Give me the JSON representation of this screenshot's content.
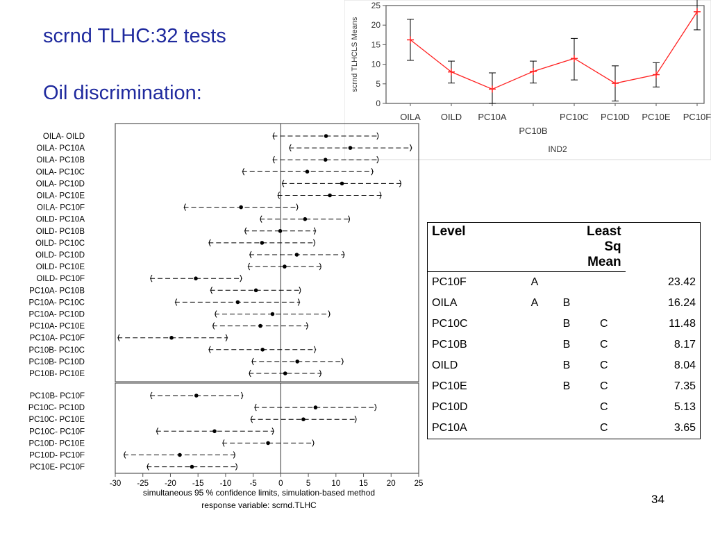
{
  "slide": {
    "title": "scrnd TLHC:32 tests",
    "subtitle": "Oil discrimination:",
    "page_number": "34"
  },
  "colors": {
    "title": "#1f2a9e",
    "means_line": "#ff2020",
    "means_marker": "#ff2020",
    "interval": "#000000"
  },
  "chart_data": [
    {
      "type": "line",
      "title": "",
      "xlabel": "IND2",
      "ylabel": "scrnd TLHCLS Means",
      "ylim": [
        0,
        25
      ],
      "yticks": [
        0,
        5,
        10,
        15,
        20,
        25
      ],
      "grid": false,
      "categories": [
        "OILA",
        "OILD",
        "PC10A",
        "PC10B",
        "PC10C",
        "PC10D",
        "PC10E",
        "PC10F"
      ],
      "category_label_rows": [
        0,
        0,
        0,
        1,
        0,
        0,
        0,
        0
      ],
      "series": [
        {
          "values": [
            16.24,
            8.04,
            3.65,
            8.17,
            11.48,
            5.13,
            7.35,
            23.42
          ],
          "lower": [
            11,
            5.2,
            0,
            5.2,
            6,
            0.6,
            4.2,
            18.8
          ],
          "upper": [
            21.5,
            10.8,
            7.8,
            10.8,
            16.6,
            9.6,
            10.4,
            26.5
          ]
        }
      ]
    },
    {
      "type": "interval",
      "xlim": [
        -30,
        25
      ],
      "xticks": [
        -30,
        -25,
        -20,
        -15,
        -10,
        -5,
        0,
        5,
        10,
        15,
        20,
        25
      ],
      "notes": [
        "simultaneous  95 % confidence limits, simulation-based method",
        "response variable: scrnd.TLHC"
      ],
      "panels": [
        {
          "rows": [
            {
              "label": "OILA- OILD",
              "estimate": 8.2,
              "lower": -1.5,
              "upper": 17.8
            },
            {
              "label": "OILA- PC10A",
              "estimate": 12.6,
              "lower": 1.5,
              "upper": 23.8
            },
            {
              "label": "OILA- PC10B",
              "estimate": 8.1,
              "lower": -1.5,
              "upper": 17.8
            },
            {
              "label": "OILA- PC10C",
              "estimate": 4.8,
              "lower": -7.0,
              "upper": 16.8
            },
            {
              "label": "OILA- PC10D",
              "estimate": 11.1,
              "lower": 0.2,
              "upper": 21.9
            },
            {
              "label": "OILA- PC10E",
              "estimate": 8.9,
              "lower": -0.6,
              "upper": 18.3
            },
            {
              "label": "OILA- PC10F",
              "estimate": -7.2,
              "lower": -17.6,
              "upper": 3.2
            },
            {
              "label": "OILD- PC10A",
              "estimate": 4.4,
              "lower": -3.8,
              "upper": 12.6
            },
            {
              "label": "OILD- PC10B",
              "estimate": -0.1,
              "lower": -6.6,
              "upper": 6.4
            },
            {
              "label": "OILD- PC10C",
              "estimate": -3.4,
              "lower": -13.1,
              "upper": 6.3
            },
            {
              "label": "OILD- PC10D",
              "estimate": 2.9,
              "lower": -5.7,
              "upper": 11.6
            },
            {
              "label": "OILD- PC10E",
              "estimate": 0.7,
              "lower": -6.0,
              "upper": 7.4
            },
            {
              "label": "OILD- PC10F",
              "estimate": -15.4,
              "lower": -23.7,
              "upper": -7.0
            },
            {
              "label": "PC10A- PC10B",
              "estimate": -4.5,
              "lower": -12.8,
              "upper": 3.7
            },
            {
              "label": "PC10A- PC10C",
              "estimate": -7.8,
              "lower": -19.2,
              "upper": 3.5
            },
            {
              "label": "PC10A- PC10D",
              "estimate": -1.5,
              "lower": -12.0,
              "upper": 9.0
            },
            {
              "label": "PC10A- PC10E",
              "estimate": -3.7,
              "lower": -12.4,
              "upper": 5.0
            },
            {
              "label": "PC10A- PC10F",
              "estimate": -19.8,
              "lower": -29.6,
              "upper": -9.6
            },
            {
              "label": "PC10B- PC10C",
              "estimate": -3.3,
              "lower": -13.1,
              "upper": 6.4
            },
            {
              "label": "PC10B- PC10D",
              "estimate": 3.0,
              "lower": -5.3,
              "upper": 11.4
            },
            {
              "label": "PC10B- PC10E",
              "estimate": 0.8,
              "lower": -5.8,
              "upper": 7.4
            }
          ]
        },
        {
          "rows": [
            {
              "label": "PC10B- PC10F",
              "estimate": -15.3,
              "lower": -23.7,
              "upper": -6.8
            },
            {
              "label": "PC10C- PC10D",
              "estimate": 6.3,
              "lower": -4.8,
              "upper": 17.4
            },
            {
              "label": "PC10C- PC10E",
              "estimate": 4.1,
              "lower": -5.5,
              "upper": 13.8
            },
            {
              "label": "PC10C- PC10F",
              "estimate": -12.0,
              "lower": -22.6,
              "upper": -1.2
            },
            {
              "label": "PC10D- PC10E",
              "estimate": -2.3,
              "lower": -10.6,
              "upper": 6.1
            },
            {
              "label": "PC10D- PC10F",
              "estimate": -18.3,
              "lower": -28.5,
              "upper": -8.2
            },
            {
              "label": "PC10E- PC10F",
              "estimate": -16.1,
              "lower": -24.3,
              "upper": -7.8
            }
          ]
        }
      ]
    },
    {
      "type": "table",
      "columns": [
        "Level",
        "",
        "",
        "Least Sq Mean"
      ],
      "column_header_lines": [
        [
          "Level"
        ],
        [
          ""
        ],
        [
          ""
        ],
        [
          "Least Sq",
          "Mean"
        ]
      ],
      "rows": [
        {
          "level": "PC10F",
          "g1": "A",
          "g2": "",
          "g3": "",
          "mean": "23.42"
        },
        {
          "level": "OILA",
          "g1": "A",
          "g2": "B",
          "g3": "",
          "mean": "16.24"
        },
        {
          "level": "PC10C",
          "g1": "",
          "g2": "B",
          "g3": "C",
          "mean": "11.48"
        },
        {
          "level": "PC10B",
          "g1": "",
          "g2": "B",
          "g3": "C",
          "mean": "8.17"
        },
        {
          "level": "OILD",
          "g1": "",
          "g2": "B",
          "g3": "C",
          "mean": "8.04"
        },
        {
          "level": "PC10E",
          "g1": "",
          "g2": "B",
          "g3": "C",
          "mean": "7.35"
        },
        {
          "level": "PC10D",
          "g1": "",
          "g2": "",
          "g3": "C",
          "mean": "5.13"
        },
        {
          "level": "PC10A",
          "g1": "",
          "g2": "",
          "g3": "C",
          "mean": "3.65"
        }
      ]
    }
  ]
}
